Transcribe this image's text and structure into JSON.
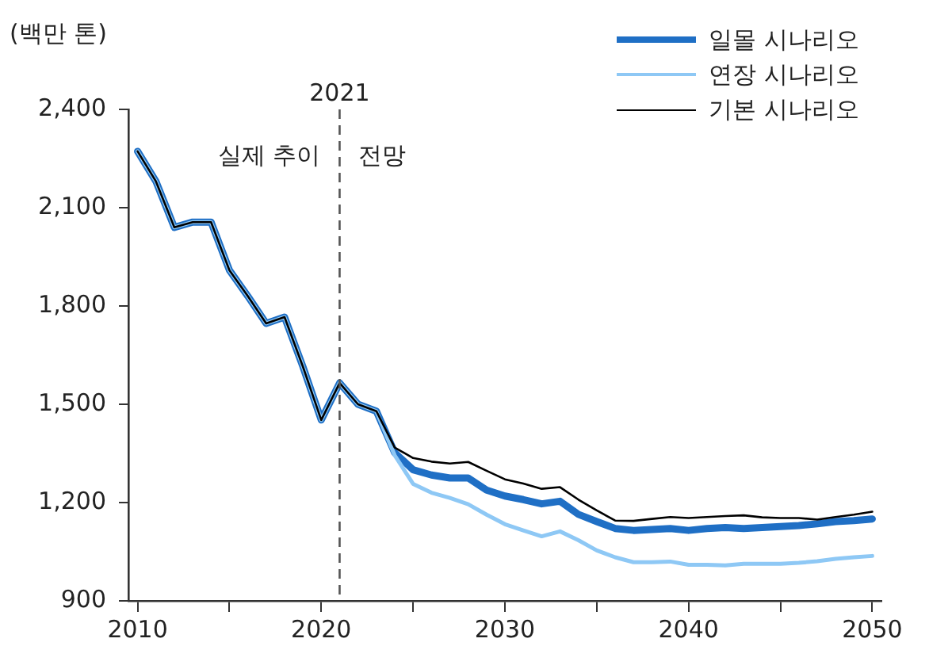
{
  "chart_data": {
    "type": "line",
    "ylabel": "(백만 톤)",
    "x": [
      2010,
      2011,
      2012,
      2013,
      2014,
      2015,
      2016,
      2017,
      2018,
      2019,
      2020,
      2021,
      2022,
      2023,
      2024,
      2025,
      2026,
      2027,
      2028,
      2029,
      2030,
      2031,
      2032,
      2033,
      2034,
      2035,
      2036,
      2037,
      2038,
      2039,
      2040,
      2041,
      2042,
      2043,
      2044,
      2045,
      2046,
      2047,
      2048,
      2049,
      2050
    ],
    "series": [
      {
        "name": "일몰 시나리오",
        "color": "#1f6fc5",
        "values": [
          2272,
          2180,
          2040,
          2056,
          2056,
          1909,
          1830,
          1747,
          1766,
          1615,
          1452,
          1565,
          1500,
          1479,
          1352,
          1300,
          1284,
          1275,
          1275,
          1238,
          1220,
          1209,
          1196,
          1204,
          1164,
          1142,
          1121,
          1115,
          1118,
          1121,
          1115,
          1121,
          1124,
          1121,
          1124,
          1127,
          1130,
          1135,
          1142,
          1145,
          1150
        ]
      },
      {
        "name": "연장 시나리오",
        "color": "#8ec8f5",
        "values": [
          2272,
          2180,
          2040,
          2056,
          2056,
          1909,
          1830,
          1747,
          1766,
          1615,
          1452,
          1565,
          1500,
          1479,
          1344,
          1257,
          1230,
          1214,
          1195,
          1163,
          1134,
          1115,
          1097,
          1112,
          1085,
          1054,
          1033,
          1018,
          1018,
          1020,
          1010,
          1010,
          1008,
          1013,
          1013,
          1013,
          1016,
          1021,
          1028,
          1033,
          1037
        ]
      },
      {
        "name": "기본 시나리오",
        "color": "#000000",
        "values": [
          2272,
          2180,
          2040,
          2056,
          2056,
          1909,
          1830,
          1747,
          1766,
          1615,
          1452,
          1565,
          1500,
          1479,
          1368,
          1336,
          1325,
          1319,
          1324,
          1297,
          1271,
          1258,
          1242,
          1247,
          1209,
          1176,
          1145,
          1144,
          1150,
          1156,
          1153,
          1156,
          1159,
          1161,
          1155,
          1153,
          1153,
          1148,
          1156,
          1163,
          1172
        ]
      }
    ],
    "xlim": [
      2009.5,
      2050.5
    ],
    "xticks": [
      2010,
      {
        "value": 2015,
        "label": null
      },
      2020,
      {
        "value": 2025,
        "label": null
      },
      2030,
      {
        "value": 2035,
        "label": null
      },
      2040,
      {
        "value": 2045,
        "label": null
      },
      2050
    ],
    "ylim": [
      900,
      2400
    ],
    "yticks": [
      900,
      {
        "value": 1200,
        "label": "1,200"
      },
      {
        "value": 1500,
        "label": "1,500"
      },
      {
        "value": 1800,
        "label": "1,800"
      },
      {
        "value": 2100,
        "label": "2,100"
      },
      {
        "value": 2400,
        "label": "2,400"
      }
    ],
    "ref_lines": [
      {
        "axis": "x",
        "value": 2021,
        "label": "2021",
        "color": "#555555",
        "line_style": "dashed"
      }
    ],
    "annotations": [
      "실제 추이",
      "전망"
    ],
    "legend": "top right",
    "grid": false,
    "marker": "none",
    "line_style": "solid"
  }
}
